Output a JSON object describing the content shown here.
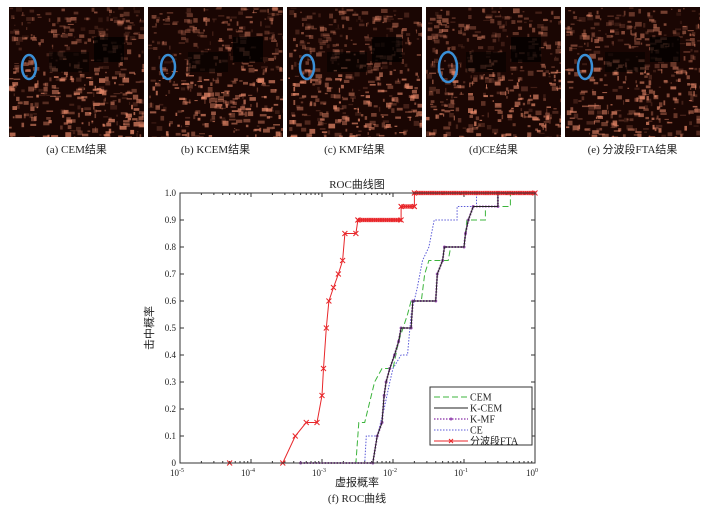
{
  "panels": [
    {
      "caption": "(a) CEM结果"
    },
    {
      "caption": "(b) KCEM结果"
    },
    {
      "caption": "(c) KMF结果"
    },
    {
      "caption": "(d)CE结果"
    },
    {
      "caption": "(e) 分波段FTA结果"
    }
  ],
  "colors": {
    "image_hot": "#e8896a",
    "image_dark": "#1a0603",
    "target_marker": "#3a8fd6"
  },
  "chart_data": {
    "type": "line",
    "title": "ROC曲线图",
    "xlabel": "虚报概率",
    "ylabel": "击中概率",
    "caption": "(f) ROC曲线",
    "xscale": "log",
    "xlim": [
      1e-05,
      1
    ],
    "ylim": [
      0,
      1
    ],
    "xticks": [
      {
        "v": 1e-05,
        "label": "10",
        "exp": "-5"
      },
      {
        "v": 0.0001,
        "label": "10",
        "exp": "-4"
      },
      {
        "v": 0.001,
        "label": "10",
        "exp": "-3"
      },
      {
        "v": 0.01,
        "label": "10",
        "exp": "-2"
      },
      {
        "v": 0.1,
        "label": "10",
        "exp": "-1"
      },
      {
        "v": 1,
        "label": "10",
        "exp": "0"
      }
    ],
    "yticks": [
      {
        "v": 0,
        "label": "0"
      },
      {
        "v": 0.1,
        "label": "0.1"
      },
      {
        "v": 0.2,
        "label": "0.2"
      },
      {
        "v": 0.3,
        "label": "0.3"
      },
      {
        "v": 0.4,
        "label": "0.4"
      },
      {
        "v": 0.5,
        "label": "0.5"
      },
      {
        "v": 0.6,
        "label": "0.6"
      },
      {
        "v": 0.7,
        "label": "0.7"
      },
      {
        "v": 0.8,
        "label": "0.8"
      },
      {
        "v": 0.9,
        "label": "0.9"
      },
      {
        "v": 1.0,
        "label": "1.0"
      }
    ],
    "grid": false,
    "legend": "bottom-right",
    "series": [
      {
        "name": "CEM",
        "color": "#3cb43c",
        "style": "dashed",
        "points": [
          [
            0.0005,
            0
          ],
          [
            0.003,
            0
          ],
          [
            0.0033,
            0.15
          ],
          [
            0.004,
            0.15
          ],
          [
            0.0055,
            0.3
          ],
          [
            0.007,
            0.35
          ],
          [
            0.01,
            0.35
          ],
          [
            0.012,
            0.45
          ],
          [
            0.016,
            0.55
          ],
          [
            0.018,
            0.6
          ],
          [
            0.025,
            0.6
          ],
          [
            0.028,
            0.7
          ],
          [
            0.032,
            0.75
          ],
          [
            0.06,
            0.75
          ],
          [
            0.065,
            0.8
          ],
          [
            0.1,
            0.8
          ],
          [
            0.11,
            0.9
          ],
          [
            0.2,
            0.9
          ],
          [
            0.2,
            0.95
          ],
          [
            0.45,
            0.95
          ],
          [
            0.45,
            1
          ],
          [
            1,
            1
          ]
        ]
      },
      {
        "name": "K-CEM",
        "color": "#222222",
        "style": "solid",
        "points": [
          [
            0.0005,
            0
          ],
          [
            0.0052,
            0
          ],
          [
            0.006,
            0.1
          ],
          [
            0.007,
            0.15
          ],
          [
            0.0075,
            0.25
          ],
          [
            0.008,
            0.3
          ],
          [
            0.009,
            0.35
          ],
          [
            0.0105,
            0.4
          ],
          [
            0.012,
            0.45
          ],
          [
            0.013,
            0.5
          ],
          [
            0.018,
            0.5
          ],
          [
            0.019,
            0.6
          ],
          [
            0.04,
            0.6
          ],
          [
            0.042,
            0.7
          ],
          [
            0.05,
            0.75
          ],
          [
            0.053,
            0.8
          ],
          [
            0.1,
            0.8
          ],
          [
            0.105,
            0.85
          ],
          [
            0.115,
            0.9
          ],
          [
            0.135,
            0.95
          ],
          [
            0.3,
            0.95
          ],
          [
            0.3,
            1
          ],
          [
            1,
            1
          ]
        ]
      },
      {
        "name": "K-MF",
        "color": "#9b4fb5",
        "style": "dotted-marker",
        "points": [
          [
            0.0005,
            0
          ],
          [
            0.0052,
            0
          ],
          [
            0.006,
            0.1
          ],
          [
            0.007,
            0.15
          ],
          [
            0.0075,
            0.25
          ],
          [
            0.008,
            0.3
          ],
          [
            0.009,
            0.35
          ],
          [
            0.0105,
            0.4
          ],
          [
            0.012,
            0.45
          ],
          [
            0.013,
            0.5
          ],
          [
            0.018,
            0.5
          ],
          [
            0.019,
            0.6
          ],
          [
            0.04,
            0.6
          ],
          [
            0.042,
            0.7
          ],
          [
            0.05,
            0.75
          ],
          [
            0.053,
            0.8
          ],
          [
            0.1,
            0.8
          ],
          [
            0.105,
            0.85
          ],
          [
            0.115,
            0.9
          ],
          [
            0.135,
            0.95
          ],
          [
            0.3,
            0.95
          ],
          [
            0.3,
            1
          ],
          [
            1,
            1
          ]
        ]
      },
      {
        "name": "CE",
        "color": "#5a5ad8",
        "style": "dotted",
        "points": [
          [
            0.0005,
            0
          ],
          [
            0.004,
            0
          ],
          [
            0.0042,
            0.1
          ],
          [
            0.006,
            0.1
          ],
          [
            0.0075,
            0.2
          ],
          [
            0.009,
            0.3
          ],
          [
            0.01,
            0.35
          ],
          [
            0.013,
            0.4
          ],
          [
            0.016,
            0.4
          ],
          [
            0.018,
            0.55
          ],
          [
            0.022,
            0.65
          ],
          [
            0.026,
            0.75
          ],
          [
            0.032,
            0.8
          ],
          [
            0.038,
            0.9
          ],
          [
            0.08,
            0.9
          ],
          [
            0.08,
            0.95
          ],
          [
            0.15,
            0.95
          ],
          [
            0.15,
            1
          ],
          [
            1,
            1
          ]
        ]
      },
      {
        "name": "分波段FTA",
        "color": "#e8262a",
        "style": "solid-x",
        "points": [
          [
            5e-05,
            0
          ],
          [
            0.00028,
            0
          ],
          [
            0.00042,
            0.1
          ],
          [
            0.0006,
            0.15
          ],
          [
            0.00085,
            0.15
          ],
          [
            0.001,
            0.25
          ],
          [
            0.00105,
            0.35
          ],
          [
            0.00115,
            0.5
          ],
          [
            0.00125,
            0.6
          ],
          [
            0.00145,
            0.65
          ],
          [
            0.0017,
            0.7
          ],
          [
            0.00195,
            0.75
          ],
          [
            0.0021,
            0.85
          ],
          [
            0.003,
            0.85
          ],
          [
            0.0032,
            0.9
          ],
          [
            0.013,
            0.9
          ],
          [
            0.013,
            0.95
          ],
          [
            0.02,
            0.95
          ],
          [
            0.02,
            1
          ],
          [
            1,
            1
          ]
        ]
      }
    ]
  }
}
